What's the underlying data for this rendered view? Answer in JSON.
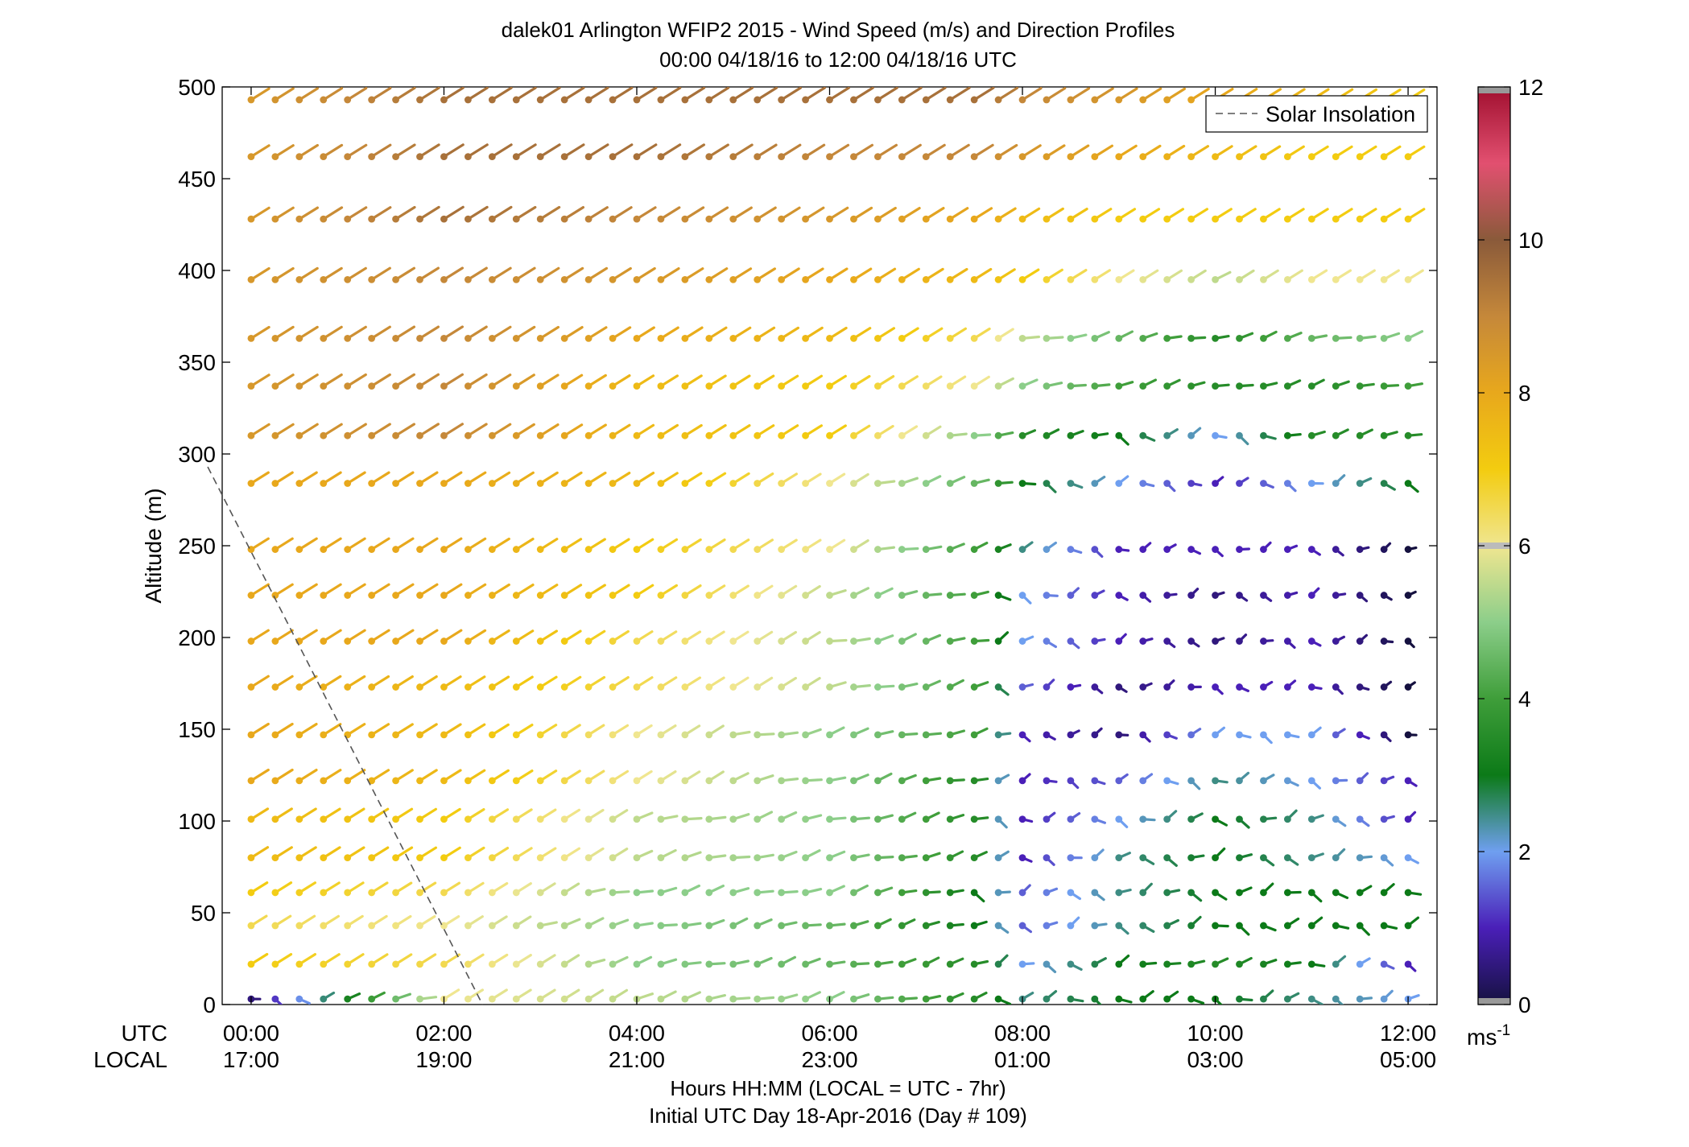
{
  "title": {
    "line1": "dalek01 Arlington WFIP2 2015 - Wind Speed (m/s) and Direction Profiles",
    "line2": "00:00 04/18/16 to 12:00 04/18/16  UTC"
  },
  "x_axis": {
    "row1_label": "UTC",
    "row2_label": "LOCAL",
    "ticks_utc": [
      "00:00",
      "02:00",
      "04:00",
      "06:00",
      "08:00",
      "10:00",
      "12:00"
    ],
    "ticks_local": [
      "17:00",
      "19:00",
      "21:00",
      "23:00",
      "01:00",
      "03:00",
      "05:00"
    ],
    "label_line1": "Hours HH:MM  (LOCAL = UTC - 7hr)",
    "label_line2": "Initial UTC Day 18-Apr-2016 (Day # 109)"
  },
  "y_axis": {
    "label": "Altitude (m)",
    "ticks": [
      "500",
      "450",
      "400",
      "350",
      "300",
      "250",
      "200",
      "150",
      "100",
      "50",
      "0"
    ]
  },
  "colorbar": {
    "ticks": [
      "12",
      "10",
      "8",
      "6",
      "4",
      "2",
      "0"
    ],
    "unit_base": "ms",
    "unit_exp": "-1"
  },
  "legend": {
    "label": "Solar Insolation"
  },
  "colors": {
    "speed_0": "#15113f",
    "speed_1": "#4a1fb8",
    "speed_2": "#6f9ff0",
    "speed_3": "#0c7a18",
    "speed_4": "#3f9e3a",
    "speed_5": "#8cce8a",
    "speed_6": "#f0e690",
    "speed_7": "#f3cc10",
    "speed_8": "#e8a81c",
    "speed_9": "#c5883a",
    "speed_10": "#8a5a3a",
    "speed_11": "#e25070",
    "speed_12": "#a00f2f",
    "solar_line": "#555555"
  },
  "chart_data": {
    "type": "wind barb profile",
    "xlabel": "Hours HH:MM  (LOCAL = UTC - 7hr)",
    "ylabel": "Altitude (m)",
    "xlim_hours_utc": [
      -0.3,
      12.3
    ],
    "ylim": [
      0,
      500
    ],
    "colorbar_range": [
      0,
      12
    ],
    "altitudes": [
      3,
      22,
      43,
      61,
      80,
      101,
      122,
      147,
      173,
      198,
      223,
      248,
      284,
      310,
      337,
      363,
      395,
      428,
      462,
      493
    ],
    "times_utc_hours": [
      0,
      0.25,
      0.5,
      0.75,
      1,
      1.25,
      1.5,
      1.75,
      2,
      2.25,
      2.5,
      2.75,
      3,
      3.25,
      3.5,
      3.75,
      4,
      4.25,
      4.5,
      4.75,
      5,
      5.25,
      5.5,
      5.75,
      6,
      6.25,
      6.5,
      6.75,
      7,
      7.25,
      7.5,
      7.75,
      8,
      8.25,
      8.5,
      8.75,
      9,
      9.25,
      9.5,
      9.75,
      10,
      10.25,
      10.5,
      10.75,
      11,
      11.25,
      11.5,
      11.75,
      12
    ],
    "speed_anchor_times": [
      0,
      2,
      4,
      6,
      7.5,
      8,
      9,
      10,
      11,
      12
    ],
    "speed_profiles_ms": [
      [
        0.5,
        6,
        5.5,
        5,
        3.5,
        2.5,
        3,
        3,
        2.5,
        2
      ],
      [
        7,
        6.5,
        5,
        4.5,
        3.5,
        2,
        3,
        3.5,
        3,
        1
      ],
      [
        6.5,
        6,
        5,
        4.5,
        3,
        1.5,
        2.5,
        3,
        3,
        3
      ],
      [
        7,
        6.5,
        5,
        5,
        3,
        1.5,
        2.5,
        3,
        3,
        3
      ],
      [
        7.5,
        7,
        5.5,
        5,
        3.5,
        1,
        2.5,
        3,
        2.5,
        2
      ],
      [
        7.5,
        7,
        5.5,
        5,
        3.5,
        1,
        2,
        3,
        2.5,
        1
      ],
      [
        8,
        7.5,
        6,
        5,
        3.5,
        1,
        1.5,
        2.5,
        2,
        1
      ],
      [
        8,
        7.5,
        6,
        5,
        4,
        1,
        0.5,
        2,
        2,
        0
      ],
      [
        8,
        7.5,
        6.5,
        5.5,
        4,
        1.5,
        0.5,
        1,
        1,
        0
      ],
      [
        8,
        8,
        6.5,
        5.5,
        4,
        2,
        1,
        0.5,
        1,
        0
      ],
      [
        8,
        8,
        7,
        5.5,
        4,
        2,
        1,
        0.5,
        1,
        0
      ],
      [
        8,
        8,
        7,
        6,
        4,
        2.5,
        1,
        1,
        1,
        0
      ],
      [
        8,
        8,
        7.5,
        6,
        4.5,
        3,
        2,
        1,
        2,
        3
      ],
      [
        8.5,
        9,
        7.5,
        7,
        5,
        3.5,
        3,
        2,
        3.5,
        3.5
      ],
      [
        8.5,
        9,
        7.5,
        7,
        6,
        5,
        4,
        3.5,
        3.5,
        4
      ],
      [
        8.5,
        9,
        8,
        7.5,
        6.5,
        5.5,
        4.5,
        3.5,
        4.5,
        5
      ],
      [
        8.5,
        9,
        8.5,
        8,
        7.5,
        7,
        6,
        5.5,
        6,
        6
      ],
      [
        8.5,
        9.5,
        9,
        8.5,
        8,
        7.5,
        7,
        7,
        7,
        7
      ],
      [
        8.5,
        9.5,
        9.5,
        9,
        9,
        8.5,
        8,
        7.5,
        7,
        7
      ],
      [
        8.5,
        9.5,
        9.5,
        9.5,
        9.5,
        9,
        8.5,
        8,
        7.5,
        7
      ]
    ],
    "solar_insolation_line": {
      "x_hours": [
        -0.45,
        2.4
      ],
      "y": [
        293,
        0
      ]
    }
  }
}
